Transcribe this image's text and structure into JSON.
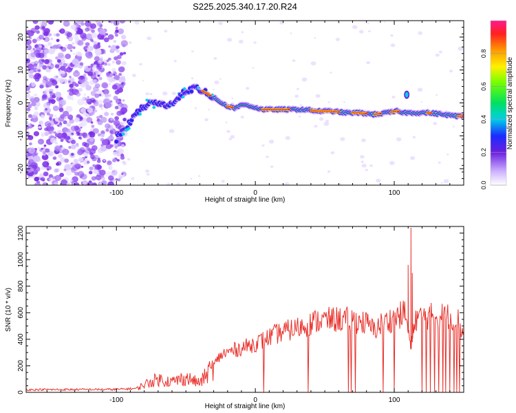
{
  "title": "S225.2025.340.17.20.R24",
  "chart_data": [
    {
      "type": "heatmap",
      "xlabel": "Height of straight line (km)",
      "ylabel": "Frequency (Hz)",
      "xlim": [
        -165,
        150
      ],
      "ylim": [
        -25,
        25
      ],
      "xticks": [
        -100,
        0,
        100
      ],
      "yticks": [
        -20,
        -10,
        0,
        10,
        20
      ],
      "colorbar": {
        "label": "Normalized spectral amplitude",
        "range": [
          0,
          1
        ],
        "ticks": [
          0.0,
          0.2,
          0.4,
          0.6,
          0.8
        ]
      },
      "ridge": [
        [
          -100,
          -11
        ],
        [
          -92,
          -7
        ],
        [
          -85,
          -3
        ],
        [
          -78,
          -0.5
        ],
        [
          -70,
          0
        ],
        [
          -62,
          -1
        ],
        [
          -55,
          2
        ],
        [
          -48,
          4
        ],
        [
          -42,
          4.5
        ],
        [
          -35,
          3
        ],
        [
          -28,
          1
        ],
        [
          -20,
          -1
        ],
        [
          -15,
          -1.5
        ],
        [
          -8,
          -0.5
        ],
        [
          -3,
          -1
        ],
        [
          5,
          -2
        ],
        [
          15,
          -2
        ],
        [
          25,
          -2
        ],
        [
          35,
          -2
        ],
        [
          45,
          -2.5
        ],
        [
          55,
          -2.5
        ],
        [
          65,
          -3
        ],
        [
          75,
          -3
        ],
        [
          85,
          -3.5
        ],
        [
          95,
          -3
        ],
        [
          102,
          -2.5
        ],
        [
          108,
          -3
        ],
        [
          115,
          -3
        ],
        [
          125,
          -3
        ],
        [
          135,
          -3.5
        ],
        [
          145,
          -4
        ],
        [
          150,
          -4
        ]
      ]
    },
    {
      "type": "line",
      "xlabel": "Height of straight line (km)",
      "ylabel": "SNR (10 * v/v)",
      "xlim": [
        -165,
        150
      ],
      "ylim": [
        0,
        1250
      ],
      "xticks": [
        -100,
        0,
        100
      ],
      "yticks": [
        0,
        200,
        400,
        600,
        800,
        1000,
        1200
      ],
      "color": "#e8302a",
      "trend": [
        [
          -165,
          20
        ],
        [
          -100,
          22
        ],
        [
          -85,
          30
        ],
        [
          -80,
          60
        ],
        [
          -70,
          100
        ],
        [
          -60,
          80
        ],
        [
          -50,
          110
        ],
        [
          -40,
          70
        ],
        [
          -30,
          200
        ],
        [
          -25,
          280
        ],
        [
          -15,
          320
        ],
        [
          -5,
          350
        ],
        [
          5,
          390
        ],
        [
          15,
          440
        ],
        [
          25,
          470
        ],
        [
          35,
          500
        ],
        [
          45,
          540
        ],
        [
          60,
          550
        ],
        [
          70,
          545
        ],
        [
          80,
          520
        ],
        [
          85,
          470
        ],
        [
          90,
          510
        ],
        [
          100,
          560
        ],
        [
          108,
          600
        ],
        [
          112,
          330
        ],
        [
          115,
          560
        ],
        [
          130,
          580
        ],
        [
          145,
          570
        ],
        [
          150,
          430
        ]
      ],
      "dropouts": [
        [
          6,
          0
        ],
        [
          38,
          0
        ],
        [
          67,
          0
        ],
        [
          69,
          0
        ],
        [
          72,
          0
        ],
        [
          92,
          0
        ],
        [
          100,
          0
        ],
        [
          120,
          0
        ],
        [
          123,
          0
        ],
        [
          126,
          0
        ],
        [
          129,
          0
        ],
        [
          132,
          0
        ],
        [
          135,
          0
        ],
        [
          137,
          0
        ],
        [
          140,
          0
        ],
        [
          143,
          0
        ],
        [
          145,
          0
        ],
        [
          147,
          0
        ]
      ],
      "spikes": [
        [
          112,
          1240
        ],
        [
          110,
          960
        ],
        [
          113,
          900
        ]
      ]
    }
  ]
}
